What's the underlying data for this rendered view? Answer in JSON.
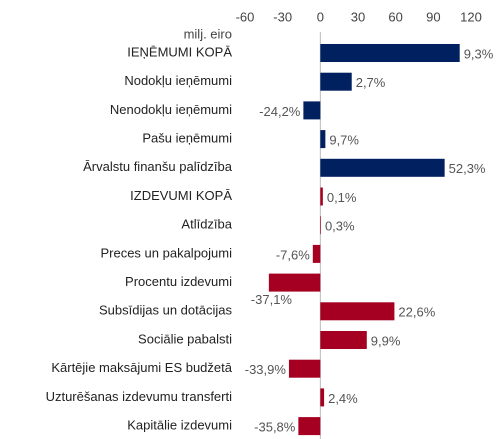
{
  "chart_data": {
    "type": "barh",
    "axis_label": "milj. eiro",
    "categories": [
      "IEŅĒMUMI KOPĀ",
      "Nodokļu ieņēmumi",
      "Nenodokļu ieņēmumi",
      "Pašu ieņēmumi",
      "Ārvalstu finanšu palīdzība",
      "IZDEVUMI KOPĀ",
      "Atlīdzība",
      "Preces un pakalpojumi",
      "Procentu izdevumi",
      "Subsīdijas un dotācijas",
      "Sociālie pabalsti",
      "Kārtējie maksājumi ES budžetā",
      "Uzturēšanas izdevumu transferti",
      "Kapitālie izdevumi"
    ],
    "values": [
      111,
      25,
      -13.5,
      4,
      99,
      2,
      0.5,
      -6,
      -41,
      59,
      37,
      -25,
      3,
      -17.5
    ],
    "annotations": [
      "9,3%",
      "2,7%",
      "-24,2%",
      "9,7%",
      "52,3%",
      "0,1%",
      "0,3%",
      "-7,6%",
      "-37,1%",
      "22,6%",
      "9,9%",
      "-33,9%",
      "2,4%",
      "-35,8%"
    ],
    "colors": [
      "#002060",
      "#002060",
      "#002060",
      "#002060",
      "#002060",
      "#a50021",
      "#a50021",
      "#a50021",
      "#a50021",
      "#a50021",
      "#a50021",
      "#a50021",
      "#a50021",
      "#a50021"
    ],
    "xlim": [
      -60,
      120
    ],
    "xticks": [
      -60,
      -30,
      0,
      30,
      60,
      90,
      120
    ]
  }
}
